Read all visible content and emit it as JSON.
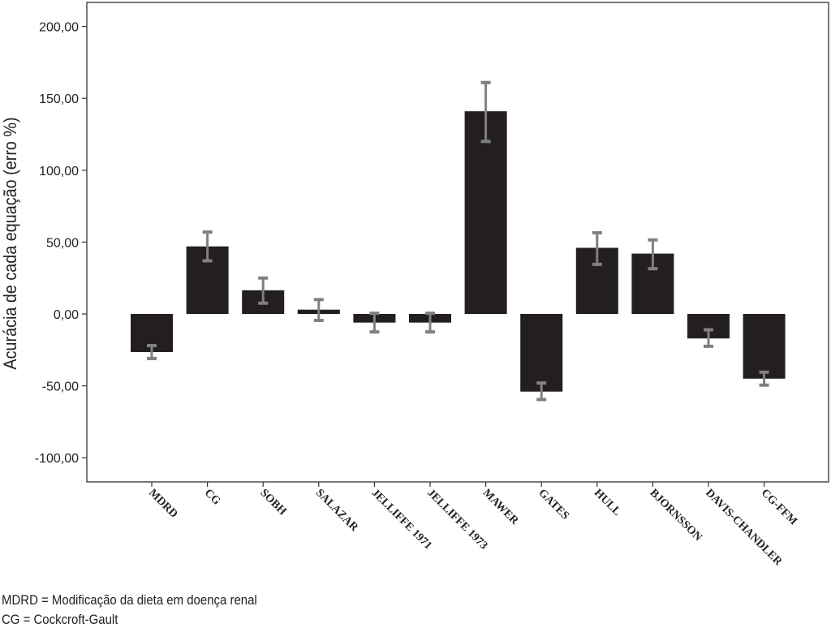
{
  "chart_data": {
    "type": "bar",
    "title": "",
    "xlabel": "",
    "ylabel": "Acurácia de cada equação (erro %)",
    "ylim": [
      -117,
      215
    ],
    "yticks": [
      -100,
      -50,
      0,
      50,
      100,
      150,
      200
    ],
    "ytick_labels": [
      "-100,00",
      "-50,00",
      "0,00",
      "50,00",
      "100,00",
      "150,00",
      "200,00"
    ],
    "categories": [
      "MDRD",
      "CG",
      "SOBH",
      "SALAZAR",
      "JELLIFFE 1971",
      "JELLIFFE 1973",
      "MAWER",
      "GATES",
      "HULL",
      "BJORNSSON",
      "DAVIS-CHANDLER",
      "CG-FFM"
    ],
    "values": [
      -26.5,
      47,
      16.5,
      3,
      -6,
      -6,
      141,
      -54,
      46,
      42,
      -17,
      -45
    ],
    "error_upper": [
      -22,
      57,
      25,
      10,
      0.5,
      0.5,
      161,
      -48,
      56.5,
      51.5,
      -11,
      -40.5
    ],
    "error_lower": [
      -31,
      37,
      7.5,
      -4.5,
      -12.5,
      -12.5,
      120,
      -59.5,
      34.5,
      31.5,
      -22.5,
      -49.5
    ],
    "grid": false,
    "colors": {
      "bar": "#231f20",
      "error": "#808080"
    }
  },
  "notes": [
    "MDRD = Modificação da dieta em doença renal",
    "CG = Cockcroft-Gault"
  ]
}
